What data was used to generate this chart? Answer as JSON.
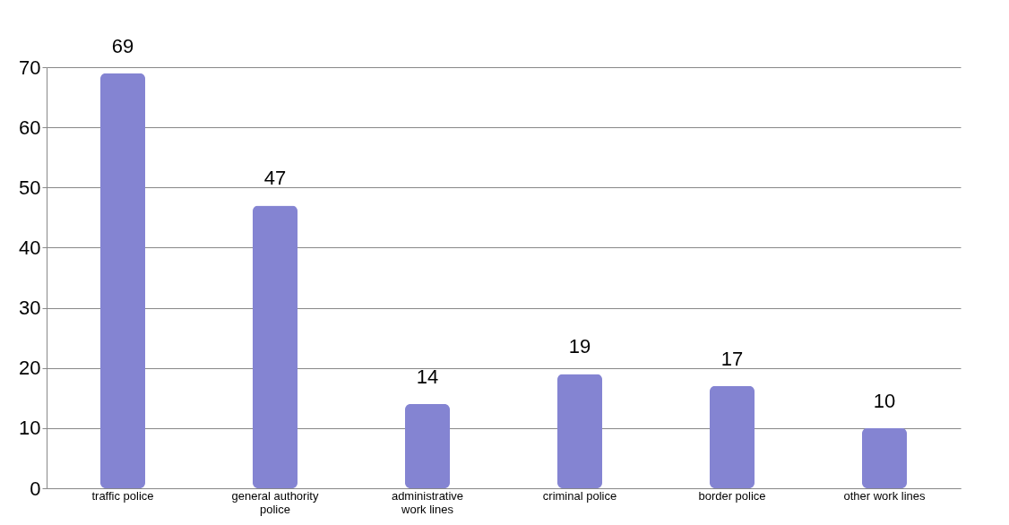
{
  "chart_data": {
    "type": "bar",
    "categories": [
      "traffic police",
      "general authority police",
      "administrative work lines",
      "criminal police",
      "border police",
      "other work lines"
    ],
    "values": [
      69,
      47,
      14,
      19,
      17,
      10
    ],
    "color": "#8484d2",
    "ylim": [
      0,
      70
    ],
    "yticks": [
      0,
      10,
      20,
      30,
      40,
      50,
      60,
      70
    ],
    "grid": "y",
    "data_labels": true
  }
}
